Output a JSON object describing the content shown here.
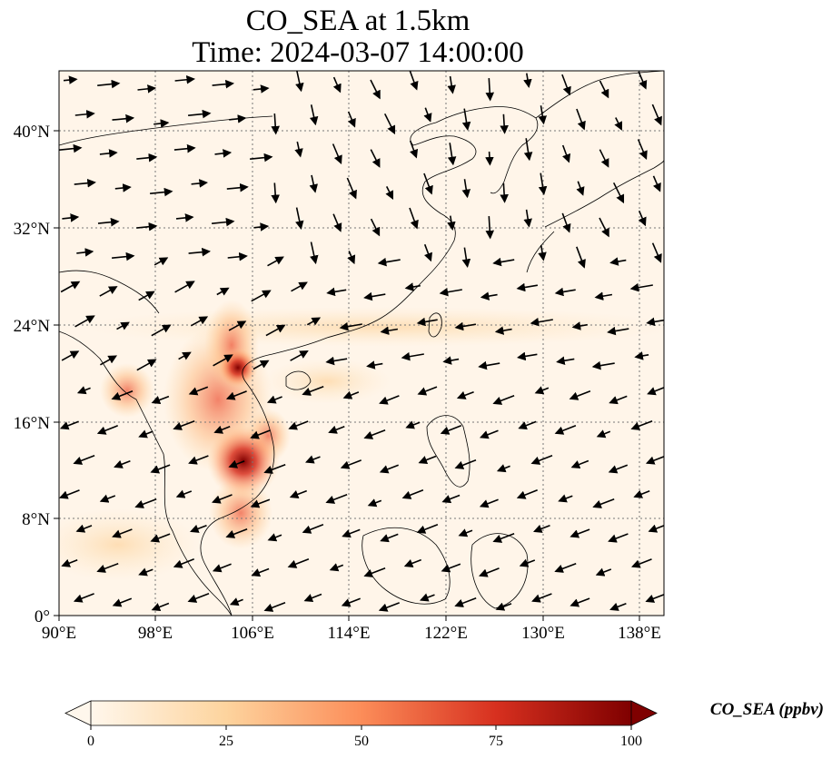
{
  "title": {
    "line1": "CO_SEA at 1.5km",
    "line2": "Time: 2024-03-07 14:00:00"
  },
  "map": {
    "lon_range": [
      90,
      140
    ],
    "lat_range": [
      0,
      45
    ],
    "x_ticks": [
      "90°E",
      "98°E",
      "106°E",
      "114°E",
      "122°E",
      "130°E",
      "138°E"
    ],
    "y_ticks": [
      "0°",
      "8°N",
      "16°N",
      "24°N",
      "32°N",
      "40°N"
    ],
    "gridlines": true,
    "coastlines": true,
    "wind_vectors": true
  },
  "colorbar": {
    "label": "CO_SEA (ppbv)",
    "ticks": [
      "0",
      "25",
      "50",
      "75",
      "100"
    ],
    "range": [
      0,
      100
    ],
    "extend": "both",
    "colormap": "OrRd",
    "colors": [
      "#fff7ec",
      "#fdd49e",
      "#fc8d59",
      "#d7301f",
      "#7f0000"
    ]
  },
  "chart_data": {
    "type": "heatmap",
    "variable": "CO_SEA",
    "unit": "ppbv",
    "hotspots": [
      {
        "lon": 105.5,
        "lat": 12.5,
        "value": 100
      },
      {
        "lon": 104.5,
        "lat": 20.5,
        "value": 80
      },
      {
        "lon": 95.5,
        "lat": 18.0,
        "value": 45
      },
      {
        "lon": 101.5,
        "lat": 16.5,
        "value": 40
      },
      {
        "lon": 103.0,
        "lat": 8.0,
        "value": 30
      },
      {
        "lon": 107.0,
        "lat": 15.0,
        "value": 55
      }
    ]
  }
}
